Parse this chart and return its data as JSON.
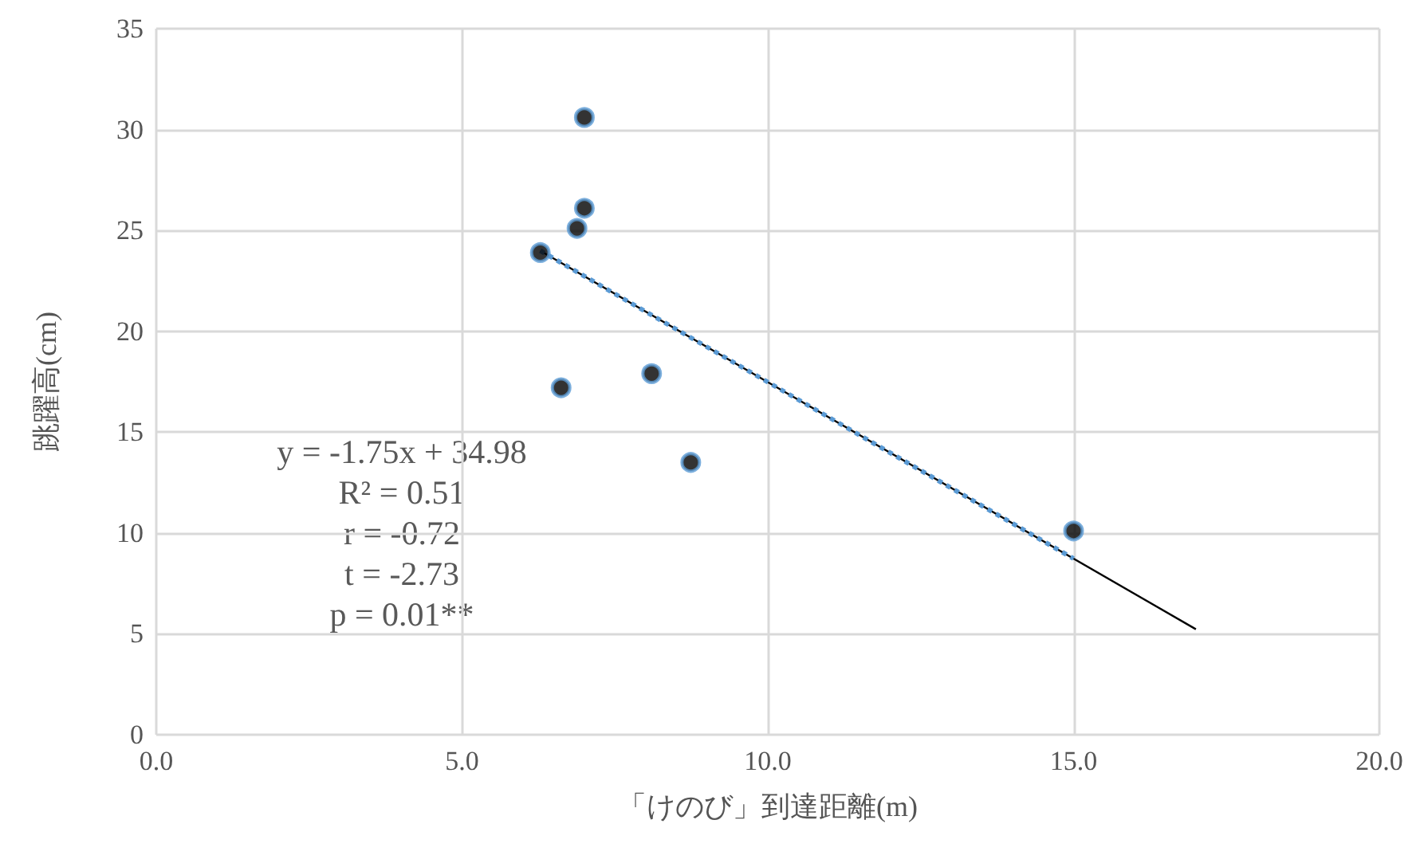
{
  "chart_data": {
    "type": "scatter",
    "xlabel": "「けのび」到達距離(m)",
    "ylabel": "跳躍高(cm)",
    "series": [
      {
        "color": "#000000",
        "marker": "circle",
        "x": [
          7.0,
          7.0,
          6.88,
          6.28,
          6.62,
          8.1,
          8.74,
          15.0
        ],
        "values": [
          30.6,
          26.1,
          25.1,
          23.9,
          17.2,
          17.9,
          13.5,
          10.1
        ]
      },
      {
        "type": "line",
        "color": "#000000",
        "marker": "none",
        "line_style": "solid",
        "x": [
          6.28,
          17.0
        ],
        "values": [
          23.99,
          5.23
        ]
      },
      {
        "type": "line",
        "color": "#5b9bd5",
        "marker": "none",
        "line_style": "dotted",
        "x": [
          6.28,
          15.0
        ],
        "values": [
          23.99,
          8.73
        ]
      }
    ],
    "xlim": [
      0,
      20
    ],
    "xticks": [
      {
        "value": 0,
        "label": "0.0"
      },
      {
        "value": 5,
        "label": "5.0"
      },
      {
        "value": 10,
        "label": "10.0"
      },
      {
        "value": 15,
        "label": "15.0"
      },
      {
        "value": 20,
        "label": "20.0"
      }
    ],
    "ylim": [
      0,
      35
    ],
    "yticks": [
      0,
      5,
      10,
      15,
      20,
      25,
      30,
      35
    ],
    "grid": true,
    "annotations": [
      "y = -1.75x + 34.98",
      "R² = 0.51",
      "r = -0.72",
      "t = -2.73",
      "p = 0.01**"
    ]
  }
}
